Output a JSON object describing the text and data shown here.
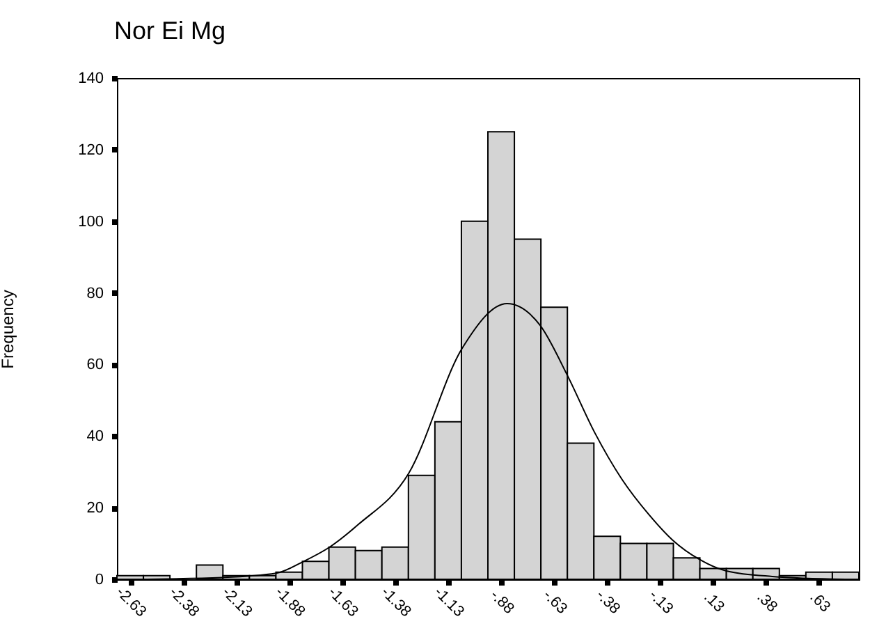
{
  "chart_data": {
    "type": "histogram",
    "title": "Nor Ei Mg",
    "ylabel": "Frequency",
    "bins": [
      -2.6875,
      -2.5625,
      -2.4375,
      -2.3125,
      -2.1875,
      -2.0625,
      -1.9375,
      -1.8125,
      -1.6875,
      -1.5625,
      -1.4375,
      -1.3125,
      -1.1875,
      -1.0625,
      -0.9375,
      -0.8125,
      -0.6875,
      -0.5625,
      -0.4375,
      -0.3125,
      -0.1875,
      -0.0625,
      0.0625,
      0.1875,
      0.3125,
      0.4375,
      0.5625,
      0.6875,
      0.8125
    ],
    "series": [
      {
        "color": "#d4d4d4",
        "values": [
          1,
          1,
          null,
          4,
          1,
          1,
          2,
          5,
          9,
          8,
          9,
          29,
          44,
          100,
          125,
          95,
          76,
          38,
          12,
          10,
          10,
          6,
          3,
          3,
          3,
          1,
          2,
          2
        ]
      },
      {
        "type": "line",
        "color": "#000000",
        "x": [
          -2.6,
          -2.193,
          -1.936,
          -1.807,
          -1.684,
          -1.549,
          -1.311,
          -1.059,
          -0.847,
          -0.692,
          -0.563,
          -0.434,
          -0.306,
          -0.177,
          -0.067,
          0.062,
          0.191,
          0.404,
          0.75
        ],
        "values": [
          0,
          0.5,
          1.7,
          5,
          9,
          15.3,
          29.6,
          64.5,
          77,
          71,
          57,
          41,
          28,
          18,
          11,
          5.5,
          2.3,
          0.8,
          0
        ]
      }
    ],
    "xlim": [
      -2.6875,
      0.8125
    ],
    "xticks": [
      {
        "value": -2.625,
        "label": "-2.63"
      },
      {
        "value": -2.375,
        "label": "-2.38"
      },
      {
        "value": -2.125,
        "label": "-2.13"
      },
      {
        "value": -1.875,
        "label": "-1.88"
      },
      {
        "value": -1.625,
        "label": "-1.63"
      },
      {
        "value": -1.375,
        "label": "-1.38"
      },
      {
        "value": -1.125,
        "label": "-1.13"
      },
      {
        "value": -0.875,
        "label": "-.88"
      },
      {
        "value": -0.625,
        "label": "-.63"
      },
      {
        "value": -0.375,
        "label": "-.38"
      },
      {
        "value": -0.125,
        "label": "-.13"
      },
      {
        "value": 0.125,
        "label": ".13"
      },
      {
        "value": 0.375,
        "label": ".38"
      },
      {
        "value": 0.625,
        "label": ".63"
      }
    ],
    "ylim": [
      0,
      140
    ],
    "yticks": [
      0,
      20,
      40,
      60,
      80,
      100,
      120,
      140
    ],
    "grid": false,
    "marker": "none"
  }
}
